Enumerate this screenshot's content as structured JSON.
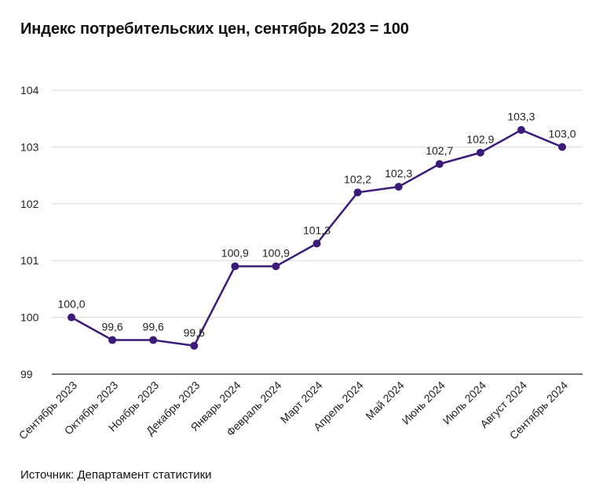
{
  "title": "Индекс потребительских цен, сентябрь 2023 = 100",
  "source": "Источник: Департамент статистики",
  "colors": {
    "line": "#3b1a7a",
    "grid": "#d9d9d9",
    "axis": "#222222"
  },
  "chart_data": {
    "type": "line",
    "title": "Индекс потребительских цен, сентябрь 2023 = 100",
    "xlabel": "",
    "ylabel": "",
    "categories": [
      "Сентябрь 2023",
      "Октябрь 2023",
      "Ноябрь 2023",
      "Декабрь 2023",
      "Январь 2024",
      "Февраль 2024",
      "Март 2024",
      "Апрель 2024",
      "Май 2024",
      "Июнь 2024",
      "Июль 2024",
      "Август 2024",
      "Сентябрь 2024"
    ],
    "series": [
      {
        "values": [
          100.0,
          99.6,
          99.6,
          99.5,
          100.9,
          100.9,
          101.3,
          102.2,
          102.3,
          102.7,
          102.9,
          103.3,
          103.0
        ],
        "labels": [
          "100,0",
          "99,6",
          "99,6",
          "99,5",
          "100,9",
          "100,9",
          "101,3",
          "102,2",
          "102,3",
          "102,7",
          "102,9",
          "103,3",
          "103,0"
        ]
      }
    ],
    "ylim": [
      99,
      104
    ],
    "yticks": [
      99,
      100,
      101,
      102,
      103,
      104
    ],
    "ytick_labels": [
      "99",
      "100",
      "101",
      "102",
      "103",
      "104"
    ],
    "grid": true,
    "legend": "none"
  }
}
